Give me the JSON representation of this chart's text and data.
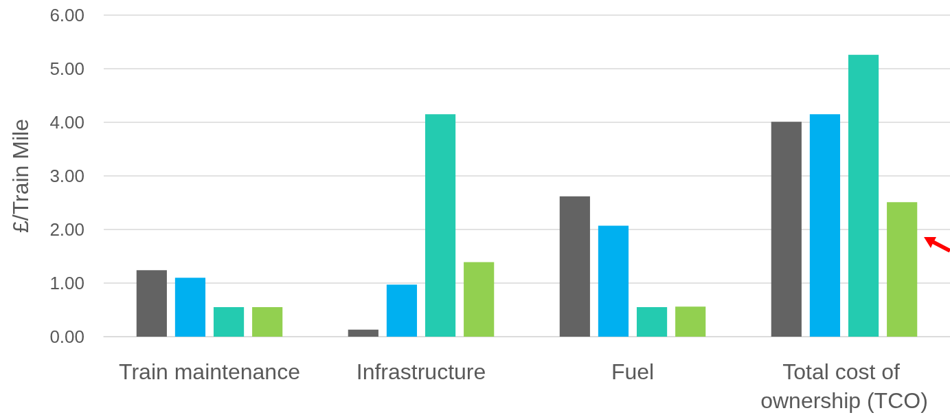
{
  "chart_data": {
    "type": "bar",
    "ylabel": "£/Train Mile",
    "categories": [
      "Train maintenance",
      "Infrastructure",
      "Fuel",
      "Total cost of ownership (TCO)"
    ],
    "series": [
      {
        "color": "#636363",
        "values": [
          1.24,
          0.13,
          2.62,
          4.01
        ]
      },
      {
        "color": "#00b0f0",
        "values": [
          1.1,
          0.97,
          2.07,
          4.15
        ]
      },
      {
        "color": "#24cbb0",
        "values": [
          0.55,
          4.15,
          0.55,
          5.26
        ]
      },
      {
        "color": "#92d050",
        "values": [
          0.55,
          1.39,
          0.56,
          2.51
        ]
      }
    ],
    "ylim": [
      0,
      6
    ],
    "yticks": [
      {
        "value": 0,
        "label": "0.00"
      },
      {
        "value": 1,
        "label": "1.00"
      },
      {
        "value": 2,
        "label": "2.00"
      },
      {
        "value": 3,
        "label": "3.00"
      },
      {
        "value": 4,
        "label": "4.00"
      },
      {
        "value": 5,
        "label": "5.00"
      },
      {
        "value": 6,
        "label": "6.00"
      }
    ],
    "grid": "y"
  }
}
